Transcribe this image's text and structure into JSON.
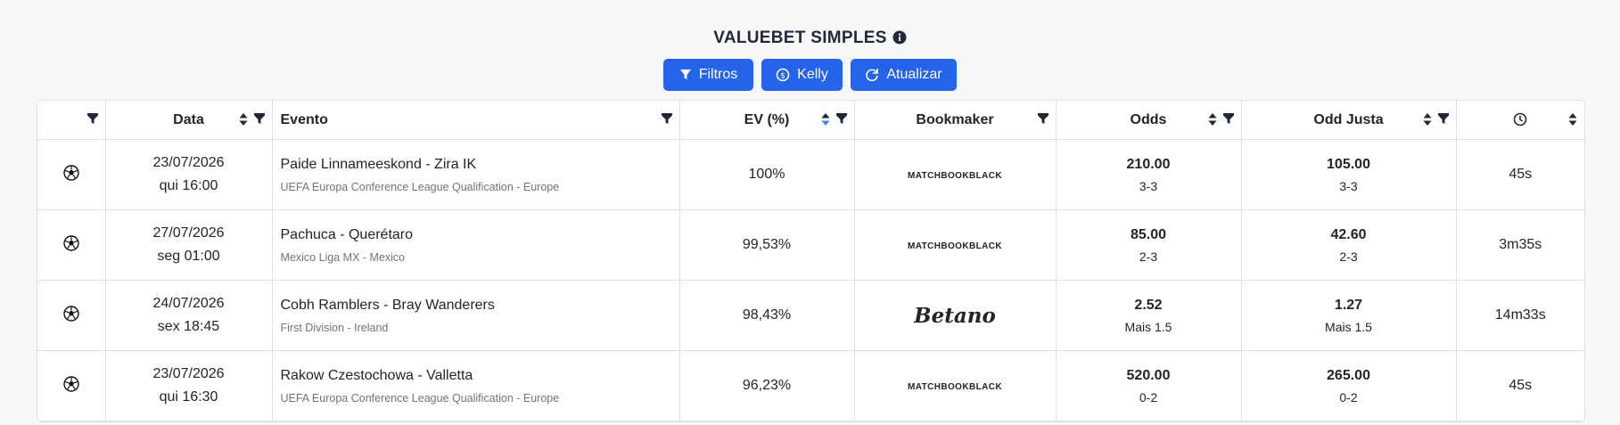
{
  "header": {
    "title": "VALUEBET SIMPLES",
    "buttons": [
      "Filtros",
      "Kelly",
      "Atualizar"
    ]
  },
  "table": {
    "columns": [
      "Data",
      "Evento",
      "EV (%)",
      "Bookmaker",
      "Odds",
      "Odd Justa"
    ],
    "rows": [
      {
        "date": "23/07/2026",
        "time": "qui 16:00",
        "event": "Paide Linnameeskond - Zira IK",
        "league": "UEFA Europa Conference League Qualification - Europe",
        "ev": "100%",
        "bookmaker": "MATCHBOOKBLACK",
        "odds": "210.00",
        "odds_market": "3-3",
        "fair_odds": "105.00",
        "fair_market": "3-3",
        "age": "45s"
      },
      {
        "date": "27/07/2026",
        "time": "seg 01:00",
        "event": "Pachuca - Querétaro",
        "league": "Mexico Liga MX - Mexico",
        "ev": "99,53%",
        "bookmaker": "MATCHBOOKBLACK",
        "odds": "85.00",
        "odds_market": "2-3",
        "fair_odds": "42.60",
        "fair_market": "2-3",
        "age": "3m35s"
      },
      {
        "date": "24/07/2026",
        "time": "sex 18:45",
        "event": "Cobh Ramblers - Bray Wanderers",
        "league": "First Division - Ireland",
        "ev": "98,43%",
        "bookmaker": "Betano",
        "odds": "2.52",
        "odds_market": "Mais 1.5",
        "fair_odds": "1.27",
        "fair_market": "Mais 1.5",
        "age": "14m33s"
      },
      {
        "date": "23/07/2026",
        "time": "qui 16:30",
        "event": "Rakow Czestochowa - Valletta",
        "league": "UEFA Europa Conference League Qualification - Europe",
        "ev": "96,23%",
        "bookmaker": "MATCHBOOKBLACK",
        "odds": "520.00",
        "odds_market": "0-2",
        "fair_odds": "265.00",
        "fair_market": "0-2",
        "age": "45s"
      }
    ]
  }
}
